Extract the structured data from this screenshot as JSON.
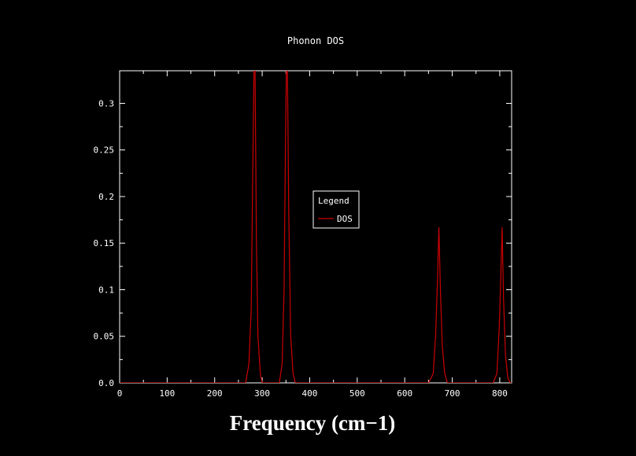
{
  "chart_data": {
    "type": "line",
    "title": "Phonon DOS",
    "xlabel": "Frequency (cm−1)",
    "ylabel": "",
    "xlim": [
      0,
      825
    ],
    "ylim": [
      0,
      0.335
    ],
    "x_ticks": [
      0,
      100,
      200,
      300,
      400,
      500,
      600,
      700,
      800
    ],
    "y_ticks": [
      0,
      0.05,
      0.1,
      0.15,
      0.2,
      0.25,
      0.3
    ],
    "y_tick_labels": [
      "0.0",
      "0.05",
      "0.1",
      "0.15",
      "0.2",
      "0.25",
      "0.3"
    ],
    "grid": false,
    "background_color": "#000000",
    "axis_color": "#ffffff",
    "legend": {
      "title": "Legend",
      "position": "center-right",
      "entries": [
        {
          "label": "DOS",
          "color": "#cd0000"
        }
      ]
    },
    "series": [
      {
        "name": "DOS",
        "color": "#cd0000",
        "points": [
          [
            0,
            0
          ],
          [
            265,
            0
          ],
          [
            272,
            0.02
          ],
          [
            277,
            0.08
          ],
          [
            280,
            0.22
          ],
          [
            283,
            0.34
          ],
          [
            285,
            0.34
          ],
          [
            288,
            0.15
          ],
          [
            291,
            0.05
          ],
          [
            296,
            0.01
          ],
          [
            300,
            0
          ],
          [
            336,
            0
          ],
          [
            342,
            0.02
          ],
          [
            346,
            0.1
          ],
          [
            349,
            0.26
          ],
          [
            351,
            0.34
          ],
          [
            353,
            0.34
          ],
          [
            356,
            0.18
          ],
          [
            360,
            0.05
          ],
          [
            365,
            0.01
          ],
          [
            370,
            0
          ],
          [
            650,
            0
          ],
          [
            660,
            0.01
          ],
          [
            665,
            0.05
          ],
          [
            669,
            0.11
          ],
          [
            672,
            0.167
          ],
          [
            675,
            0.1
          ],
          [
            679,
            0.04
          ],
          [
            684,
            0.01
          ],
          [
            690,
            0
          ],
          [
            786,
            0
          ],
          [
            794,
            0.01
          ],
          [
            799,
            0.06
          ],
          [
            802,
            0.11
          ],
          [
            805,
            0.167
          ],
          [
            808,
            0.09
          ],
          [
            812,
            0.03
          ],
          [
            817,
            0.005
          ],
          [
            822,
            0
          ],
          [
            825,
            0
          ]
        ]
      }
    ]
  }
}
